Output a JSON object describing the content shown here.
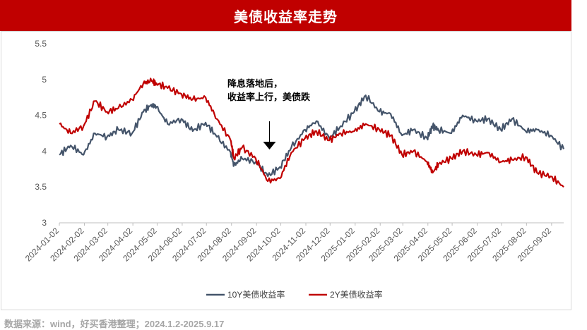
{
  "title": "美债收益率走势",
  "source_note": "数据来源：wind，好买香港整理；2024.1.2-2025.9.17",
  "colors": {
    "banner": "#c00000",
    "series_10y": "#44546a",
    "series_2y": "#c00000"
  },
  "chart_data": {
    "type": "line",
    "title": "美债收益率走势",
    "xlabel": "",
    "ylabel": "",
    "ylim": [
      3,
      5.5
    ],
    "yticks": [
      3,
      3.5,
      4,
      4.5,
      5,
      5.5
    ],
    "grid": false,
    "legend_position": "bottom",
    "x_tick_labels": [
      "2024-01-02",
      "2024-02-02",
      "2024-03-02",
      "2024-04-02",
      "2024-05-02",
      "2024-06-02",
      "2024-07-02",
      "2024-08-02",
      "2024-09-02",
      "2024-10-02",
      "2024-11-02",
      "2024-12-02",
      "2025-01-02",
      "2025-02-02",
      "2025-03-02",
      "2025-04-02",
      "2025-05-02",
      "2025-06-02",
      "2025-07-02",
      "2025-08-02",
      "2025-09-02"
    ],
    "x": [
      "2024-01-02",
      "2024-01-16",
      "2024-02-01",
      "2024-02-15",
      "2024-03-01",
      "2024-03-15",
      "2024-04-01",
      "2024-04-15",
      "2024-04-25",
      "2024-05-01",
      "2024-05-15",
      "2024-06-01",
      "2024-06-15",
      "2024-07-01",
      "2024-07-15",
      "2024-08-01",
      "2024-08-05",
      "2024-08-15",
      "2024-09-01",
      "2024-09-16",
      "2024-10-01",
      "2024-10-15",
      "2024-11-01",
      "2024-11-15",
      "2024-12-01",
      "2024-12-15",
      "2025-01-01",
      "2025-01-15",
      "2025-02-01",
      "2025-02-15",
      "2025-03-01",
      "2025-03-15",
      "2025-04-01",
      "2025-04-08",
      "2025-04-15",
      "2025-05-01",
      "2025-05-15",
      "2025-06-01",
      "2025-06-15",
      "2025-07-01",
      "2025-07-15",
      "2025-08-01",
      "2025-08-15",
      "2025-09-01",
      "2025-09-17"
    ],
    "series": [
      {
        "name": "10Y美债收益率",
        "values": [
          3.95,
          4.08,
          3.95,
          4.25,
          4.2,
          4.3,
          4.25,
          4.55,
          4.65,
          4.62,
          4.38,
          4.45,
          4.28,
          4.4,
          4.2,
          3.98,
          3.8,
          3.9,
          3.85,
          3.65,
          3.78,
          4.05,
          4.3,
          4.42,
          4.18,
          4.35,
          4.55,
          4.78,
          4.55,
          4.52,
          4.22,
          4.3,
          4.18,
          4.35,
          4.3,
          4.25,
          4.5,
          4.42,
          4.45,
          4.3,
          4.45,
          4.28,
          4.3,
          4.22,
          4.03
        ]
      },
      {
        "name": "2Y美债收益率",
        "values": [
          4.38,
          4.25,
          4.35,
          4.7,
          4.55,
          4.6,
          4.72,
          4.95,
          4.98,
          4.95,
          4.88,
          4.8,
          4.72,
          4.75,
          4.45,
          4.15,
          3.9,
          4.05,
          3.9,
          3.58,
          3.62,
          3.98,
          4.18,
          4.28,
          4.15,
          4.25,
          4.28,
          4.38,
          4.3,
          4.22,
          3.95,
          4.0,
          3.85,
          3.7,
          3.82,
          3.9,
          4.0,
          3.95,
          3.98,
          3.85,
          3.88,
          3.92,
          3.7,
          3.65,
          3.5
        ]
      }
    ],
    "annotation": {
      "lines": [
        "降息落地后，",
        "收益率上行，美债跌"
      ],
      "arrow_x": "2024-09-18"
    }
  }
}
